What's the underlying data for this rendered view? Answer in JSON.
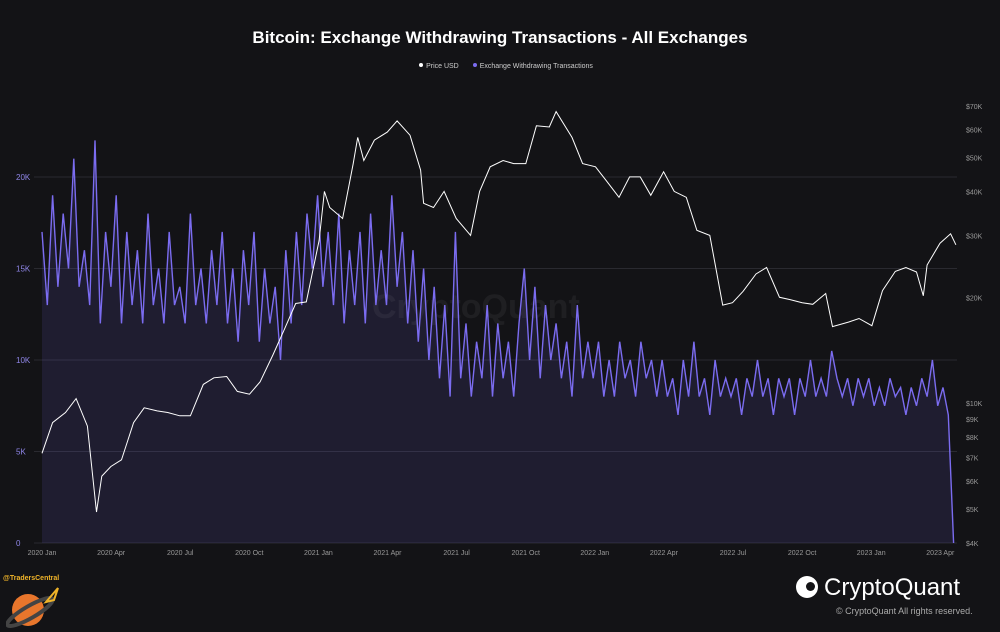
{
  "chart_data": {
    "type": "line",
    "title": "Bitcoin: Exchange Withdrawing Transactions - All Exchanges",
    "legend": [
      {
        "name": "Price USD",
        "color": "#ffffff"
      },
      {
        "name": "Exchange Withdrawing Transactions",
        "color": "#7b6cf0"
      }
    ],
    "legend_placement": "top-center",
    "x_ticks": [
      "2020 Jan",
      "2020 Apr",
      "2020 Jul",
      "2020 Oct",
      "2021 Jan",
      "2021 Apr",
      "2021 Jul",
      "2021 Oct",
      "2022 Jan",
      "2022 Apr",
      "2022 Jul",
      "2022 Oct",
      "2023 Jan",
      "2023 Apr"
    ],
    "left_axis": {
      "ticks": [
        "0",
        "5K",
        "10K",
        "15K",
        "20K"
      ],
      "values": [
        0,
        5000,
        10000,
        15000,
        20000
      ],
      "ylim": [
        0,
        20000
      ]
    },
    "right_axis": {
      "scale": "log",
      "ticks": [
        "$70K",
        "$60K",
        "$50K",
        "$40K",
        "$30K",
        "$20K",
        "$10K",
        "$9K",
        "$8K",
        "$7K",
        "$6K",
        "$5K",
        "$4K"
      ],
      "values": [
        70000,
        60000,
        50000,
        40000,
        30000,
        20000,
        10000,
        9000,
        8000,
        7000,
        6000,
        5000,
        4000
      ],
      "ylim": [
        4000,
        70000
      ]
    },
    "grid": "horizontal",
    "withdrawals": {
      "start": "2020-01-01",
      "interval_days": 7,
      "unit": "thousands",
      "values": [
        17,
        13,
        19,
        14,
        18,
        15,
        21,
        14,
        16,
        13,
        22,
        12,
        17,
        14,
        19,
        12,
        17,
        13,
        16,
        12,
        18,
        13,
        15,
        12,
        17,
        13,
        14,
        12,
        18,
        13,
        15,
        12,
        16,
        13,
        17,
        12,
        15,
        11,
        16,
        13,
        17,
        11,
        15,
        12,
        14,
        10,
        16,
        12,
        17,
        13,
        18,
        15,
        19,
        14,
        17,
        13,
        18,
        12,
        16,
        13,
        17,
        12,
        18,
        13,
        16,
        13,
        19,
        14,
        17,
        12,
        16,
        11,
        15,
        10,
        14,
        9,
        13,
        8,
        17,
        9,
        12,
        8,
        11,
        9,
        13,
        8,
        12,
        9,
        11,
        8,
        12,
        15,
        10,
        14,
        9,
        13,
        10,
        12,
        9,
        11,
        8,
        13,
        9,
        11,
        9,
        11,
        8,
        10,
        8,
        11,
        9,
        10,
        8,
        11,
        9,
        10,
        8,
        10,
        8,
        9,
        7,
        10,
        8,
        11,
        8,
        9,
        7,
        10,
        8,
        9,
        8,
        9,
        7,
        9,
        8,
        10,
        8,
        9,
        7,
        9,
        8,
        9,
        7,
        9,
        8,
        10,
        8,
        9,
        8,
        10.5,
        9,
        8,
        9,
        7.5,
        9,
        8,
        9,
        7.5,
        8.5,
        7.5,
        9,
        8,
        8.5,
        7,
        8.5,
        7.5,
        9,
        8,
        10,
        7.5,
        8.5,
        7,
        0
      ]
    },
    "price": [
      [
        "2020-01-01",
        7200
      ],
      [
        "2020-01-15",
        8800
      ],
      [
        "2020-02-01",
        9400
      ],
      [
        "2020-02-15",
        10300
      ],
      [
        "2020-03-01",
        8600
      ],
      [
        "2020-03-13",
        4900
      ],
      [
        "2020-03-20",
        6200
      ],
      [
        "2020-04-01",
        6600
      ],
      [
        "2020-04-15",
        6900
      ],
      [
        "2020-05-01",
        8800
      ],
      [
        "2020-05-15",
        9700
      ],
      [
        "2020-06-01",
        9500
      ],
      [
        "2020-06-15",
        9400
      ],
      [
        "2020-07-01",
        9200
      ],
      [
        "2020-07-15",
        9200
      ],
      [
        "2020-08-01",
        11300
      ],
      [
        "2020-08-15",
        11800
      ],
      [
        "2020-09-01",
        11900
      ],
      [
        "2020-09-15",
        10800
      ],
      [
        "2020-10-01",
        10600
      ],
      [
        "2020-10-15",
        11500
      ],
      [
        "2020-11-01",
        13700
      ],
      [
        "2020-11-15",
        16000
      ],
      [
        "2020-12-01",
        19200
      ],
      [
        "2020-12-15",
        19400
      ],
      [
        "2021-01-01",
        29000
      ],
      [
        "2021-01-08",
        40000
      ],
      [
        "2021-01-15",
        36000
      ],
      [
        "2021-02-01",
        33500
      ],
      [
        "2021-02-15",
        48000
      ],
      [
        "2021-02-21",
        57000
      ],
      [
        "2021-03-01",
        49000
      ],
      [
        "2021-03-15",
        56000
      ],
      [
        "2021-04-01",
        59000
      ],
      [
        "2021-04-14",
        63500
      ],
      [
        "2021-05-01",
        57800
      ],
      [
        "2021-05-15",
        46000
      ],
      [
        "2021-05-19",
        37000
      ],
      [
        "2021-06-01",
        36000
      ],
      [
        "2021-06-15",
        40000
      ],
      [
        "2021-07-01",
        33500
      ],
      [
        "2021-07-20",
        30000
      ],
      [
        "2021-08-01",
        40000
      ],
      [
        "2021-08-15",
        47000
      ],
      [
        "2021-09-01",
        49000
      ],
      [
        "2021-09-15",
        48000
      ],
      [
        "2021-10-01",
        48000
      ],
      [
        "2021-10-15",
        61500
      ],
      [
        "2021-11-01",
        61000
      ],
      [
        "2021-11-10",
        67500
      ],
      [
        "2021-12-01",
        57000
      ],
      [
        "2021-12-15",
        48000
      ],
      [
        "2022-01-01",
        47000
      ],
      [
        "2022-01-15",
        43000
      ],
      [
        "2022-02-01",
        38500
      ],
      [
        "2022-02-15",
        44000
      ],
      [
        "2022-03-01",
        44000
      ],
      [
        "2022-03-15",
        39000
      ],
      [
        "2022-04-01",
        45500
      ],
      [
        "2022-04-15",
        40000
      ],
      [
        "2022-05-01",
        38500
      ],
      [
        "2022-05-15",
        31000
      ],
      [
        "2022-06-01",
        30000
      ],
      [
        "2022-06-18",
        19000
      ],
      [
        "2022-07-01",
        19300
      ],
      [
        "2022-07-15",
        20800
      ],
      [
        "2022-08-01",
        23300
      ],
      [
        "2022-08-15",
        24300
      ],
      [
        "2022-09-01",
        20000
      ],
      [
        "2022-09-15",
        19700
      ],
      [
        "2022-10-01",
        19300
      ],
      [
        "2022-10-15",
        19100
      ],
      [
        "2022-11-01",
        20500
      ],
      [
        "2022-11-10",
        16500
      ],
      [
        "2022-12-01",
        17000
      ],
      [
        "2022-12-15",
        17400
      ],
      [
        "2023-01-01",
        16600
      ],
      [
        "2023-01-15",
        20900
      ],
      [
        "2023-02-01",
        23700
      ],
      [
        "2023-02-15",
        24300
      ],
      [
        "2023-03-01",
        23600
      ],
      [
        "2023-03-10",
        20200
      ],
      [
        "2023-03-15",
        24700
      ],
      [
        "2023-04-01",
        28500
      ],
      [
        "2023-04-15",
        30300
      ],
      [
        "2023-04-22",
        28200
      ]
    ]
  },
  "watermark": "CryptoQuant",
  "footer": {
    "handle": "@TradersCentral",
    "brand": "CryptoQuant",
    "copyright": "© CryptoQuant All rights reserved."
  }
}
